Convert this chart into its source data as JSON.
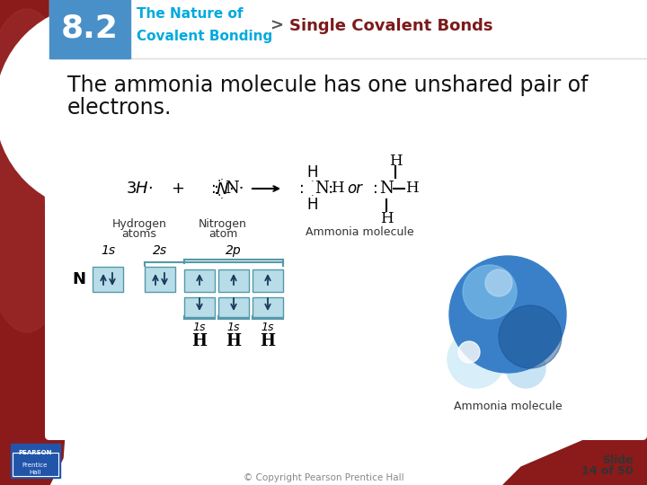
{
  "header_num": "8.2",
  "header_num_color": "#ffffff",
  "header_num_bg": "#4a90c8",
  "header_title_line1": "The Nature of",
  "header_title_line2": "Covalent Bonding",
  "header_title_color": "#00aadd",
  "header_arrow": ">",
  "header_section": "Single Covalent Bonds",
  "header_section_color": "#7b1a1a",
  "body_bg": "#ffffff",
  "main_text_line1": "The ammonia molecule has one unshared pair of",
  "main_text_line2": "electrons.",
  "main_text_color": "#111111",
  "slide_label_line1": "Slide",
  "slide_label_line2": "14 of 50",
  "copyright": "© Copyright Pearson Prentice Hall",
  "left_bg_color": "#8b2020",
  "box_fill": "#b8dde8",
  "box_fill_dark": "#7fbfd8"
}
